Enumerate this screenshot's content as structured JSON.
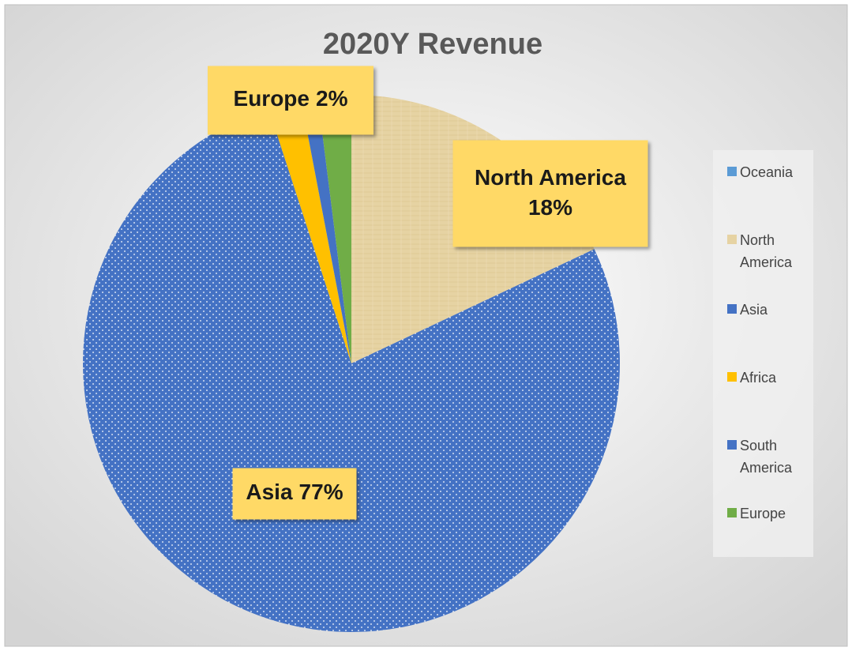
{
  "chart_data": {
    "type": "pie",
    "title": "2020Y Revenue",
    "categories": [
      "Oceania",
      "North America",
      "Asia",
      "Africa",
      "South America",
      "Europe"
    ],
    "values": [
      0,
      18,
      77,
      2,
      1,
      2
    ],
    "value_labels": [
      null,
      "18%",
      "77%",
      null,
      null,
      "2%"
    ],
    "colors": [
      "#5b9bd5",
      "#e6d3a3",
      "#4472c4",
      "#ffc000",
      "#4472c4",
      "#70ad47"
    ],
    "legend": "right"
  }
}
